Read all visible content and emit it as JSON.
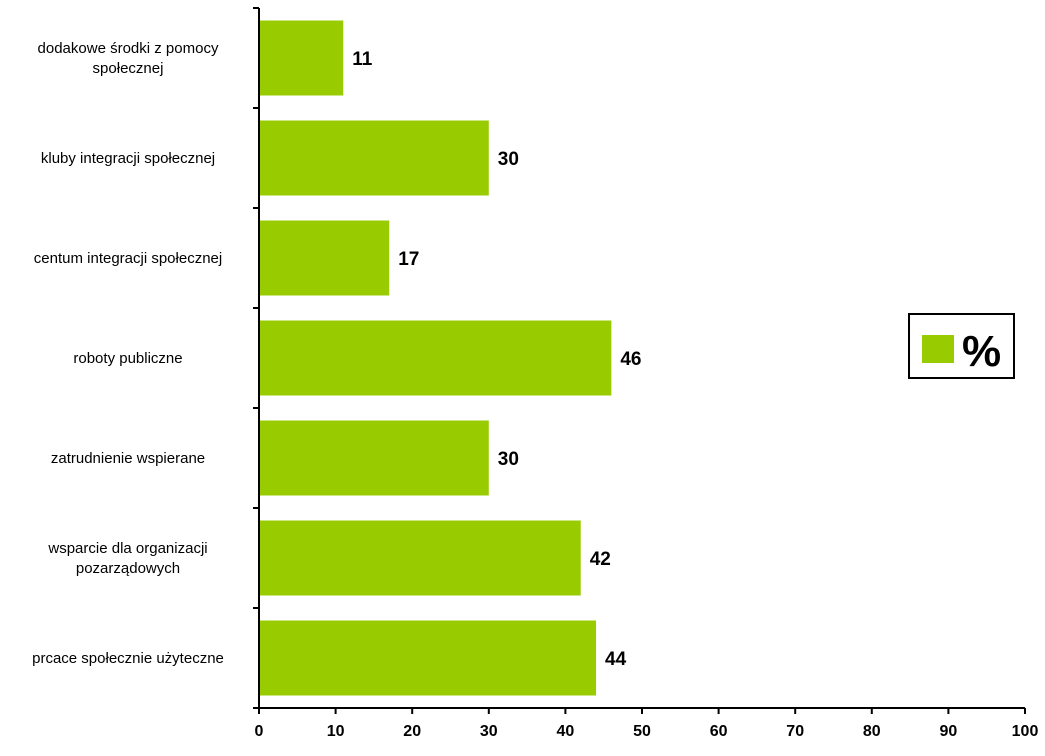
{
  "chart_data": {
    "type": "bar",
    "orientation": "horizontal",
    "categories": [
      "dodakowe środki z pomocy społecznej",
      "kluby integracji społecznej",
      "centum integracji społecznej",
      "roboty publiczne",
      "zatrudnienie wspierane",
      "wsparcie dla organizacji pozarządowych",
      "prcace społecznie użyteczne"
    ],
    "category_lines": [
      [
        "dodakowe środki z pomocy",
        "społecznej"
      ],
      [
        "kluby integracji społecznej"
      ],
      [
        "centum integracji społecznej"
      ],
      [
        "roboty publiczne"
      ],
      [
        "zatrudnienie wspierane"
      ],
      [
        "wsparcie dla organizacji",
        "pozarządowych"
      ],
      [
        "prcace społecznie użyteczne"
      ]
    ],
    "series": [
      {
        "name": "%",
        "values": [
          11,
          30,
          17,
          46,
          30,
          42,
          44
        ],
        "color": "#99cc00"
      }
    ],
    "xlim": [
      0,
      100
    ],
    "xticks": [
      "0",
      "10",
      "20",
      "30",
      "40",
      "50",
      "60",
      "70",
      "80",
      "90",
      "100"
    ],
    "title": "",
    "xlabel": "",
    "ylabel": "",
    "grid": false,
    "legend": {
      "position": "right",
      "entries": [
        "%"
      ]
    },
    "data_labels": true
  }
}
